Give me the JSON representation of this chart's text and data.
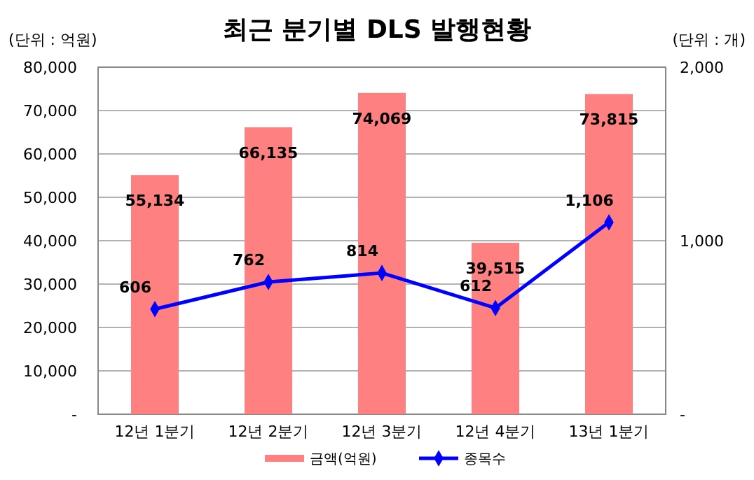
{
  "chart_data": {
    "type": "bar",
    "title": "최근 분기별 DLS 발행현황",
    "ylabel": "(단위 : 억원)",
    "y2label": "(단위 : 개)",
    "categories": [
      "12년 1분기",
      "12년 2분기",
      "12년 3분기",
      "12년 4분기",
      "13년 1분기"
    ],
    "series": [
      {
        "name": "금액(억원)",
        "color": "#ff8080",
        "values": [
          55134,
          66135,
          74069,
          39515,
          73815
        ],
        "value_labels": [
          "55,134",
          "66,135",
          "74,069",
          "39,515",
          "73,815"
        ]
      },
      {
        "name": "종목수",
        "type": "line",
        "axis": "y2",
        "color": "#0000ff",
        "marker": "diamond",
        "values": [
          606,
          762,
          814,
          612,
          1106
        ],
        "value_labels": [
          "606",
          "762",
          "814",
          "612",
          "1,106"
        ]
      }
    ],
    "ylim": [
      0,
      80000
    ],
    "yticks": [
      {
        "value": 0,
        "label": "-"
      },
      {
        "value": 10000,
        "label": "10,000"
      },
      {
        "value": 20000,
        "label": "20,000"
      },
      {
        "value": 30000,
        "label": "30,000"
      },
      {
        "value": 40000,
        "label": "40,000"
      },
      {
        "value": 50000,
        "label": "50,000"
      },
      {
        "value": 60000,
        "label": "60,000"
      },
      {
        "value": 70000,
        "label": "70,000"
      },
      {
        "value": 80000,
        "label": "80,000"
      }
    ],
    "y2lim": [
      0,
      2000
    ],
    "y2ticks": [
      {
        "value": 0,
        "label": "-"
      },
      {
        "value": 1000,
        "label": "1,000"
      },
      {
        "value": 2000,
        "label": "2,000"
      }
    ],
    "grid": "y",
    "legend": "bottom"
  }
}
